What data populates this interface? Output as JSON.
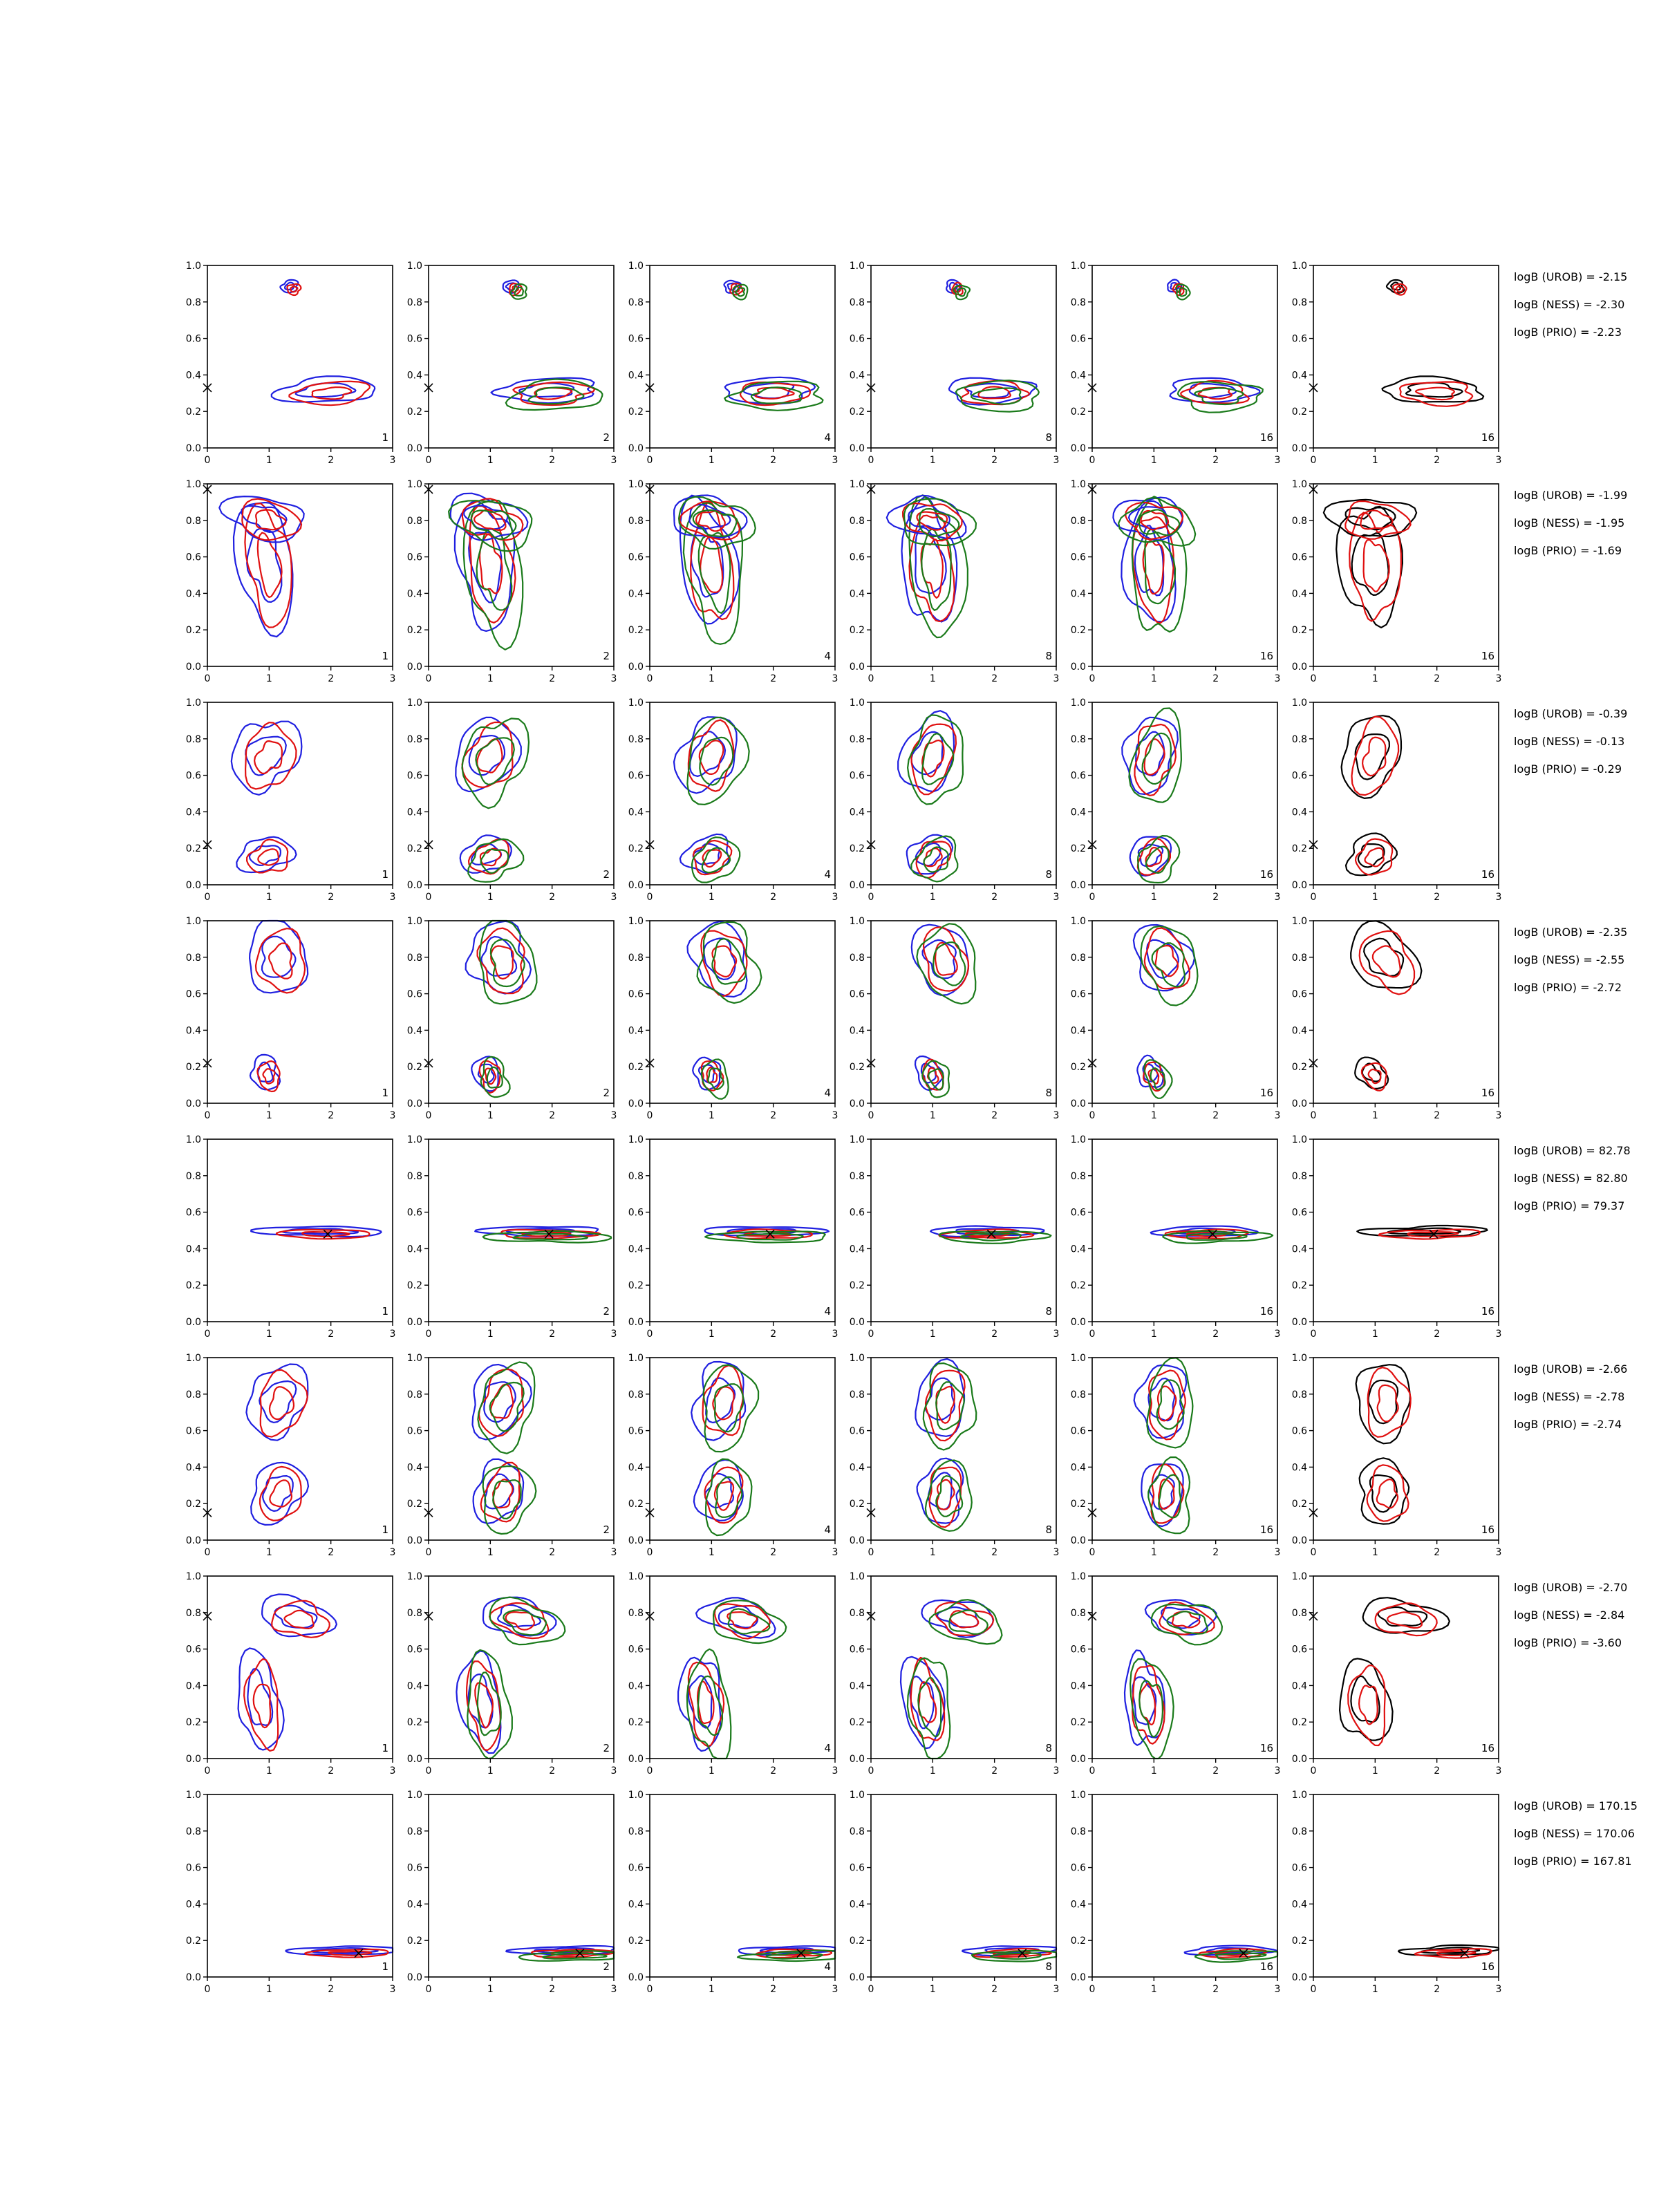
{
  "figure": {
    "rows": 8,
    "cols": 6
  },
  "colors": {
    "blue": "#1f1fe0",
    "red": "#e01010",
    "green": "#1a7a1a",
    "black": "#000000"
  },
  "chart_data": {
    "type": "contour-grid",
    "x_ticks": [
      "0",
      "1",
      "2",
      "3"
    ],
    "y_ticks": [
      "0.0",
      "0.2",
      "0.4",
      "0.6",
      "0.8",
      "1.0"
    ],
    "xlim": [
      0,
      3
    ],
    "ylim": [
      0,
      1
    ],
    "column_labels": [
      "1",
      "2",
      "4",
      "8",
      "16",
      "16"
    ],
    "last_column_color": "black",
    "rows": [
      {
        "bayes": [
          "logB (UROB) = -2.15",
          "logB (NESS) = -2.30",
          "logB (PRIO) = -2.23"
        ],
        "marker": [
          0.0,
          0.33
        ],
        "modes": [
          {
            "x": 2.0,
            "y": 0.3,
            "sx": 0.9,
            "sy": 0.06
          },
          {
            "x": 1.4,
            "y": 0.87,
            "sx": 0.15,
            "sy": 0.03
          }
        ]
      },
      {
        "bayes": [
          "logB (UROB) = -1.99",
          "logB (NESS) = -1.95",
          "logB (PRIO) = -1.69"
        ],
        "marker": [
          0.0,
          0.97
        ],
        "modes": [
          {
            "x": 1.0,
            "y": 0.55,
            "sx": 0.45,
            "sy": 0.35
          },
          {
            "x": 1.0,
            "y": 0.8,
            "sx": 0.6,
            "sy": 0.12
          }
        ]
      },
      {
        "bayes": [
          "logB (UROB) = -0.39",
          "logB (NESS) = -0.13",
          "logB (PRIO) = -0.29"
        ],
        "marker": [
          0.0,
          0.22
        ],
        "modes": [
          {
            "x": 1.0,
            "y": 0.7,
            "sx": 0.5,
            "sy": 0.2
          },
          {
            "x": 1.0,
            "y": 0.15,
            "sx": 0.4,
            "sy": 0.1
          }
        ]
      },
      {
        "bayes": [
          "logB (UROB) = -2.35",
          "logB (NESS) = -2.55",
          "logB (PRIO) = -2.72"
        ],
        "marker": [
          0.0,
          0.22
        ],
        "modes": [
          {
            "x": 1.2,
            "y": 0.78,
            "sx": 0.55,
            "sy": 0.17
          },
          {
            "x": 1.0,
            "y": 0.15,
            "sx": 0.25,
            "sy": 0.08
          }
        ]
      },
      {
        "bayes": [
          "logB (UROB) = 82.78",
          "logB (NESS) = 82.80",
          "logB (PRIO) = 79.37"
        ],
        "marker": [
          1.95,
          0.48
        ],
        "modes": [
          {
            "x": 1.9,
            "y": 0.48,
            "sx": 0.9,
            "sy": 0.03
          }
        ]
      },
      {
        "bayes": [
          "logB (UROB) = -2.66",
          "logB (NESS) = -2.78",
          "logB (PRIO) = -2.74"
        ],
        "marker": [
          0.0,
          0.15
        ],
        "modes": [
          {
            "x": 1.2,
            "y": 0.75,
            "sx": 0.5,
            "sy": 0.18
          },
          {
            "x": 1.2,
            "y": 0.25,
            "sx": 0.45,
            "sy": 0.15
          }
        ]
      },
      {
        "bayes": [
          "logB (UROB) = -2.70",
          "logB (NESS) = -2.84",
          "logB (PRIO) = -3.60"
        ],
        "marker": [
          0.0,
          0.78
        ],
        "modes": [
          {
            "x": 1.5,
            "y": 0.76,
            "sx": 0.6,
            "sy": 0.1
          },
          {
            "x": 0.9,
            "y": 0.3,
            "sx": 0.35,
            "sy": 0.25
          }
        ]
      },
      {
        "bayes": [
          "logB (UROB) = 170.15",
          "logB (NESS) = 170.06",
          "logB (PRIO) = 167.81"
        ],
        "marker": [
          2.45,
          0.13
        ],
        "modes": [
          {
            "x": 2.3,
            "y": 0.13,
            "sx": 0.8,
            "sy": 0.025
          }
        ]
      }
    ]
  }
}
